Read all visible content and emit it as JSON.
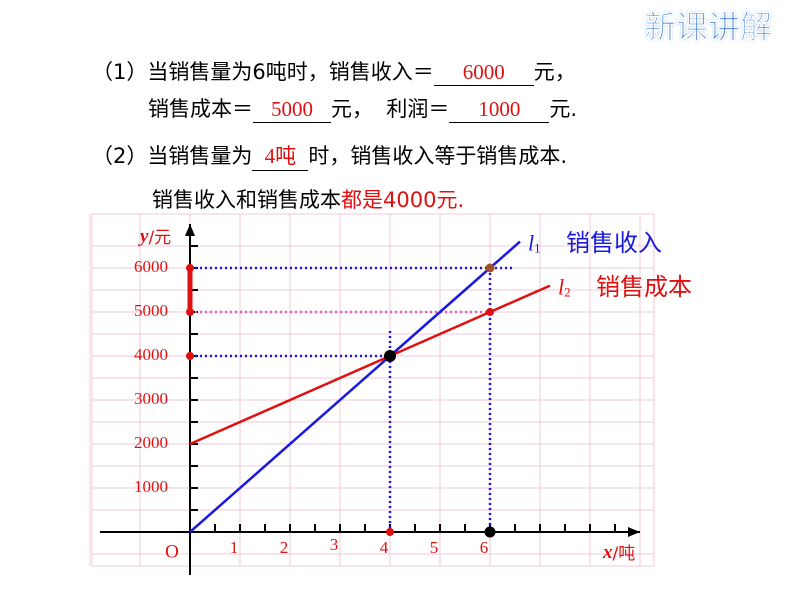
{
  "header": {
    "title": "新课讲解"
  },
  "questions": {
    "q1": {
      "prefix": "（1）当销售量为6吨时，销售收入＝",
      "answer1": "6000",
      "unit1": "元，",
      "line2_prefix": "销售成本＝",
      "answer2": "5000",
      "unit2": "元，  利润＝",
      "answer3": "1000",
      "unit3": "元."
    },
    "q2": {
      "prefix": "（2）当销售量为",
      "answer": "4吨",
      "suffix": "时，销售收入等于销售成本.",
      "line2_black": "销售收入和销售成本",
      "line2_red": "都是4000元."
    }
  },
  "chart_data": {
    "type": "line",
    "x_label": {
      "var": "x",
      "unit": "/吨"
    },
    "y_label": {
      "var": "y",
      "unit": "/元"
    },
    "origin_label": "O",
    "xlim": [
      0,
      9
    ],
    "ylim": [
      0,
      7000
    ],
    "xticks": [
      1,
      2,
      3,
      4,
      5,
      6
    ],
    "yticks": [
      1000,
      2000,
      3000,
      4000,
      5000,
      6000
    ],
    "grid": true,
    "series": [
      {
        "name": "销售收入",
        "label_main": "l",
        "label_sub": "1",
        "color": "#1a1adf",
        "x": [
          0,
          4,
          6,
          6.6
        ],
        "values": [
          0,
          4000,
          6000,
          6600
        ]
      },
      {
        "name": "销售成本",
        "label_main": "l",
        "label_sub": "2",
        "color": "#e01010",
        "x": [
          0,
          4,
          6,
          7.2
        ],
        "values": [
          2000,
          4000,
          5000,
          5600
        ]
      }
    ]
  }
}
